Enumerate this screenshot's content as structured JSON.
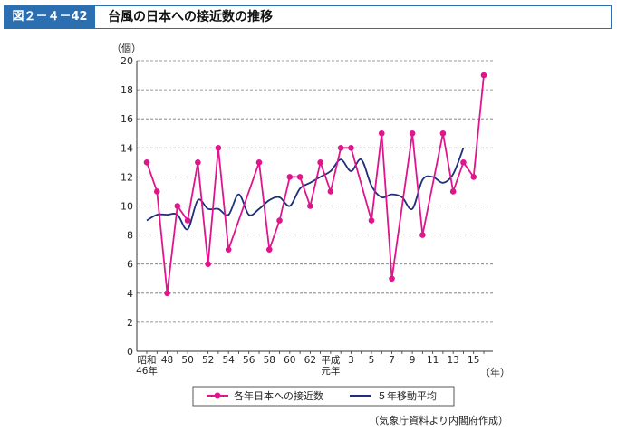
{
  "header": {
    "figure_label": "図２－４－42",
    "title": "台風の日本への接近数の推移"
  },
  "source": "（気象庁資料より内閣府作成）",
  "chart_data": {
    "type": "line",
    "y_unit": "（個）",
    "x_unit": "（年）",
    "ylim": [
      0,
      20
    ],
    "y_ticks": [
      0,
      2,
      4,
      6,
      8,
      10,
      12,
      14,
      16,
      18,
      20
    ],
    "x_tick_labels": [
      {
        "idx": 0,
        "lines": [
          "昭和",
          "46年"
        ]
      },
      {
        "idx": 2,
        "lines": [
          "48"
        ]
      },
      {
        "idx": 4,
        "lines": [
          "50"
        ]
      },
      {
        "idx": 6,
        "lines": [
          "52"
        ]
      },
      {
        "idx": 8,
        "lines": [
          "54"
        ]
      },
      {
        "idx": 10,
        "lines": [
          "56"
        ]
      },
      {
        "idx": 12,
        "lines": [
          "58"
        ]
      },
      {
        "idx": 14,
        "lines": [
          "60"
        ]
      },
      {
        "idx": 16,
        "lines": [
          "62"
        ]
      },
      {
        "idx": 18,
        "lines": [
          "平成",
          "元年"
        ]
      },
      {
        "idx": 20,
        "lines": [
          "3"
        ]
      },
      {
        "idx": 22,
        "lines": [
          "5"
        ]
      },
      {
        "idx": 24,
        "lines": [
          "7"
        ]
      },
      {
        "idx": 26,
        "lines": [
          "9"
        ]
      },
      {
        "idx": 28,
        "lines": [
          "11"
        ]
      },
      {
        "idx": 30,
        "lines": [
          "13"
        ]
      },
      {
        "idx": 32,
        "lines": [
          "15"
        ]
      }
    ],
    "grid": "horizontal dashed",
    "legend_position": "bottom",
    "series": [
      {
        "name": "各年日本への接近数",
        "color": "#e0158c",
        "marker": "circle",
        "values": [
          13,
          11,
          4,
          10,
          9,
          13,
          6,
          14,
          7,
          null,
          null,
          13,
          7,
          9,
          12,
          12,
          10,
          13,
          11,
          14,
          14,
          null,
          9,
          15,
          5,
          null,
          15,
          8,
          null,
          15,
          11,
          13,
          12,
          19
        ]
      },
      {
        "name": "５年移動平均",
        "color": "#1f2f7a",
        "marker": "none",
        "values": [
          9.0,
          9.4,
          9.4,
          9.4,
          8.4,
          10.4,
          9.8,
          9.8,
          9.4,
          10.8,
          9.4,
          9.8,
          10.4,
          10.6,
          10.0,
          11.2,
          11.6,
          12.0,
          12.4,
          13.2,
          12.4,
          13.2,
          11.4,
          10.6,
          10.8,
          10.6,
          9.8,
          11.8,
          12.0,
          11.6,
          12.2,
          14.0,
          null,
          null
        ]
      }
    ]
  }
}
